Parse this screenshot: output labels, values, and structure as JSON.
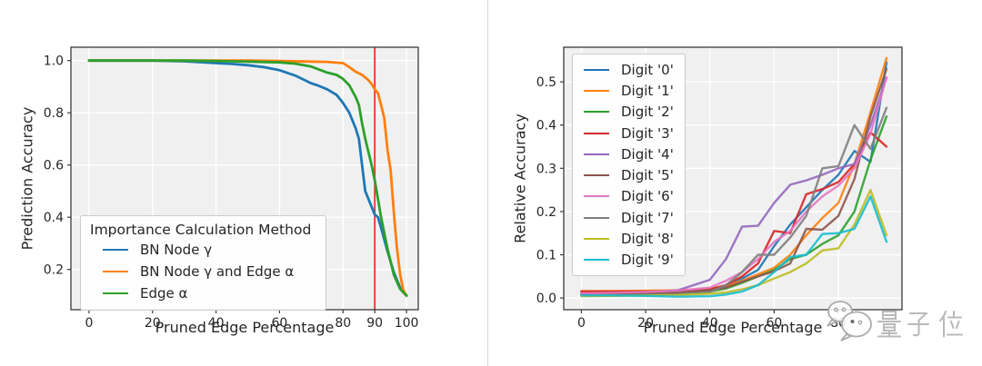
{
  "page": {
    "background": "#ffffff",
    "divider_color": "#d9d9d9",
    "plot_background": "#f0f0f1",
    "grid_color": "#ffffff",
    "spine_color": "#3a3a3a",
    "text_color": "#262626",
    "highlight_red": "#e8352a"
  },
  "watermark": {
    "text": "量子位",
    "icon": "wechat-logo",
    "color": "#a9a9a9"
  },
  "chart_data": [
    {
      "type": "line",
      "title": "",
      "xlabel": "Pruned Edge Percentage",
      "ylabel": "Prediction Accuracy",
      "xlim": [
        -5.7,
        103.7
      ],
      "ylim": [
        0.046,
        1.051
      ],
      "grid": true,
      "legend_position": "lower left",
      "legend_title": "Importance Calculation Method",
      "line_width": 2.8,
      "line_opacity": 1.0,
      "xticks": [
        {
          "v": 0,
          "label": "0"
        },
        {
          "v": 20,
          "label": "20"
        },
        {
          "v": 40,
          "label": "40"
        },
        {
          "v": 60,
          "label": "60"
        },
        {
          "v": 80,
          "label": "80"
        },
        {
          "v": 90,
          "label": "90",
          "color": "#e8352a"
        },
        {
          "v": 100,
          "label": "100"
        }
      ],
      "yticks": [
        {
          "v": 0.2,
          "label": "0.2"
        },
        {
          "v": 0.4,
          "label": "0.4"
        },
        {
          "v": 0.6,
          "label": "0.6"
        },
        {
          "v": 0.8,
          "label": "0.8"
        },
        {
          "v": 1.0,
          "label": "1.0"
        }
      ],
      "vlines": [
        {
          "x": 90,
          "color": "#e8352a",
          "width": 1.8
        }
      ],
      "series": [
        {
          "name": "BN Node γ",
          "color": "#1f77b4",
          "x": [
            0,
            10,
            20,
            30,
            40,
            45,
            50,
            55,
            60,
            65,
            70,
            72,
            75,
            78,
            80,
            82,
            84,
            85,
            86,
            87,
            88,
            90,
            91,
            92,
            94,
            96,
            98,
            100
          ],
          "y": [
            1.0,
            1.0,
            1.0,
            0.997,
            0.99,
            0.987,
            0.982,
            0.975,
            0.963,
            0.942,
            0.913,
            0.905,
            0.89,
            0.868,
            0.838,
            0.8,
            0.74,
            0.7,
            0.6,
            0.5,
            0.47,
            0.41,
            0.4,
            0.36,
            0.27,
            0.19,
            0.13,
            0.1
          ]
        },
        {
          "name": "BN Node γ and Edge α",
          "color": "#ff7f0e",
          "x": [
            0,
            10,
            20,
            30,
            40,
            50,
            60,
            70,
            75,
            80,
            82,
            84,
            86,
            88,
            89,
            90,
            91,
            92,
            93,
            94,
            95,
            96,
            97,
            98,
            99,
            100
          ],
          "y": [
            1.0,
            1.0,
            1.0,
            1.0,
            1.0,
            1.0,
            0.998,
            0.996,
            0.995,
            0.99,
            0.975,
            0.957,
            0.945,
            0.925,
            0.91,
            0.89,
            0.875,
            0.83,
            0.78,
            0.66,
            0.58,
            0.42,
            0.28,
            0.18,
            0.12,
            0.1
          ]
        },
        {
          "name": "Edge α",
          "color": "#2ca02c",
          "x": [
            0,
            10,
            20,
            30,
            40,
            50,
            60,
            65,
            70,
            75,
            78,
            80,
            82,
            84,
            85,
            86,
            87,
            88,
            89,
            90,
            91,
            92,
            94,
            96,
            98,
            100
          ],
          "y": [
            1.0,
            1.0,
            1.0,
            1.0,
            0.998,
            0.996,
            0.993,
            0.988,
            0.977,
            0.954,
            0.945,
            0.93,
            0.905,
            0.86,
            0.83,
            0.76,
            0.7,
            0.65,
            0.6,
            0.54,
            0.47,
            0.4,
            0.28,
            0.18,
            0.125,
            0.1
          ]
        }
      ]
    },
    {
      "type": "line",
      "title": "",
      "xlabel": "Pruned Edge Percentage",
      "ylabel": "Relative Accuracy",
      "xlim": [
        -5.5,
        99.8
      ],
      "ylim": [
        -0.027,
        0.58
      ],
      "grid": true,
      "legend_position": "upper left",
      "legend_title": "",
      "line_width": 2.4,
      "line_opacity": 0.9,
      "xticks": [
        {
          "v": 0,
          "label": "0"
        },
        {
          "v": 20,
          "label": "20"
        },
        {
          "v": 40,
          "label": "40"
        },
        {
          "v": 60,
          "label": "60"
        },
        {
          "v": 80,
          "label": "80"
        }
      ],
      "yticks": [
        {
          "v": 0.0,
          "label": "0.0"
        },
        {
          "v": 0.1,
          "label": "0.1"
        },
        {
          "v": 0.2,
          "label": "0.2"
        },
        {
          "v": 0.3,
          "label": "0.3"
        },
        {
          "v": 0.4,
          "label": "0.4"
        },
        {
          "v": 0.5,
          "label": "0.5"
        }
      ],
      "vlines": [],
      "x_shared": [
        0,
        10,
        20,
        30,
        40,
        45,
        50,
        55,
        60,
        65,
        70,
        75,
        80,
        85,
        90,
        95
      ],
      "series": [
        {
          "name": "Digit '0'",
          "color": "#1f77b4",
          "y": [
            0.01,
            0.01,
            0.012,
            0.013,
            0.02,
            0.028,
            0.045,
            0.065,
            0.12,
            0.17,
            0.21,
            0.25,
            0.285,
            0.34,
            0.315,
            0.545
          ]
        },
        {
          "name": "Digit '1'",
          "color": "#ff7f0e",
          "y": [
            0.016,
            0.016,
            0.017,
            0.018,
            0.022,
            0.028,
            0.04,
            0.055,
            0.07,
            0.1,
            0.145,
            0.185,
            0.22,
            0.31,
            0.43,
            0.555
          ]
        },
        {
          "name": "Digit '2'",
          "color": "#2ca02c",
          "y": [
            0.007,
            0.007,
            0.009,
            0.01,
            0.015,
            0.022,
            0.035,
            0.05,
            0.065,
            0.09,
            0.1,
            0.125,
            0.145,
            0.2,
            0.32,
            0.42
          ]
        },
        {
          "name": "Digit '3'",
          "color": "#d62728",
          "y": [
            0.015,
            0.015,
            0.015,
            0.016,
            0.02,
            0.03,
            0.05,
            0.08,
            0.155,
            0.15,
            0.24,
            0.252,
            0.268,
            0.31,
            0.383,
            0.35
          ]
        },
        {
          "name": "Digit '4'",
          "color": "#9467bd",
          "y": [
            0.01,
            0.011,
            0.013,
            0.018,
            0.042,
            0.09,
            0.165,
            0.167,
            0.22,
            0.262,
            0.272,
            0.285,
            0.3,
            0.31,
            0.4,
            0.51
          ]
        },
        {
          "name": "Digit '5'",
          "color": "#8c564b",
          "y": [
            0.009,
            0.009,
            0.011,
            0.013,
            0.018,
            0.024,
            0.038,
            0.05,
            0.062,
            0.08,
            0.16,
            0.158,
            0.19,
            0.275,
            0.42,
            0.53
          ]
        },
        {
          "name": "Digit '6'",
          "color": "#e377c2",
          "y": [
            0.011,
            0.012,
            0.014,
            0.017,
            0.024,
            0.04,
            0.06,
            0.09,
            0.13,
            0.155,
            0.2,
            0.235,
            0.26,
            0.3,
            0.38,
            0.51
          ]
        },
        {
          "name": "Digit '7'",
          "color": "#7f7f7f",
          "y": [
            0.005,
            0.005,
            0.007,
            0.009,
            0.014,
            0.03,
            0.06,
            0.1,
            0.1,
            0.14,
            0.19,
            0.3,
            0.305,
            0.4,
            0.345,
            0.44
          ]
        },
        {
          "name": "Digit '8'",
          "color": "#bcbd22",
          "y": [
            0.004,
            0.005,
            0.006,
            0.007,
            0.01,
            0.013,
            0.02,
            0.03,
            0.045,
            0.06,
            0.08,
            0.11,
            0.115,
            0.17,
            0.25,
            0.145
          ]
        },
        {
          "name": "Digit '9'",
          "color": "#17becf",
          "y": [
            0.006,
            0.006,
            0.005,
            0.003,
            0.004,
            0.008,
            0.015,
            0.03,
            0.06,
            0.095,
            0.1,
            0.148,
            0.15,
            0.16,
            0.235,
            0.13
          ]
        }
      ]
    }
  ]
}
